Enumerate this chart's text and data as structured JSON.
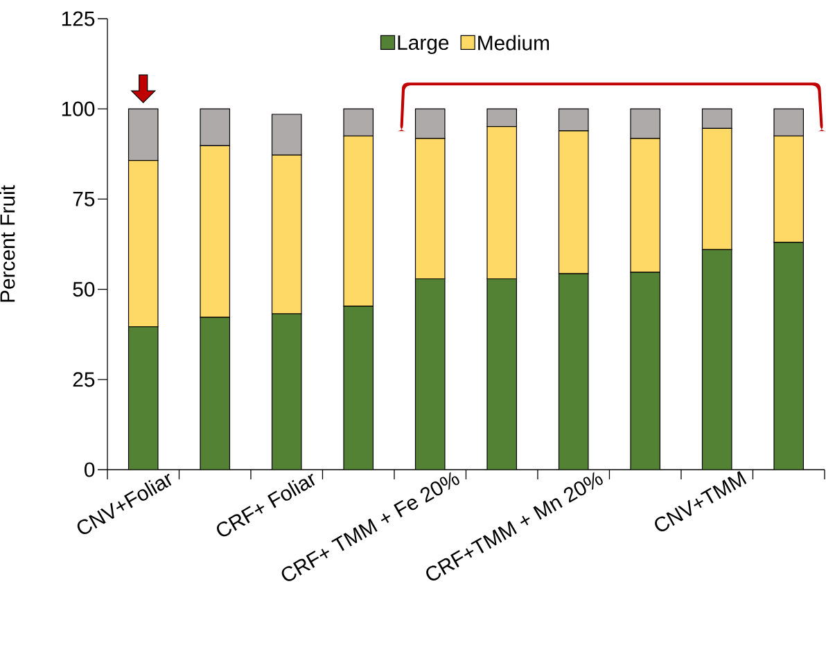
{
  "chart_data": {
    "type": "bar",
    "stacked": true,
    "ylabel": "Percent Fruit",
    "ylim": [
      0,
      125
    ],
    "yticks": [
      0,
      25,
      50,
      75,
      100,
      125
    ],
    "legend": "top",
    "categories": [
      "CNV+Foliar",
      null,
      "CRF+ Foliar",
      null,
      "CRF+ TMM + Fe 20%",
      null,
      "CRF+TMM + Mn 20%",
      null,
      "CNV+TMM",
      null
    ],
    "series": [
      {
        "name": "Large",
        "color": "#548235",
        "values": [
          39.6,
          42.2,
          43.2,
          45.3,
          52.9,
          52.9,
          54.3,
          54.7,
          61.0,
          63.0
        ]
      },
      {
        "name": "Medium",
        "color": "#ffd966",
        "values": [
          46.1,
          47.6,
          44.0,
          47.2,
          38.9,
          42.2,
          39.6,
          37.1,
          33.6,
          29.5
        ]
      },
      {
        "color": "#aeaaaa",
        "values": [
          14.3,
          10.2,
          11.3,
          7.5,
          8.2,
          4.9,
          6.1,
          8.2,
          5.4,
          7.5
        ]
      }
    ]
  }
}
